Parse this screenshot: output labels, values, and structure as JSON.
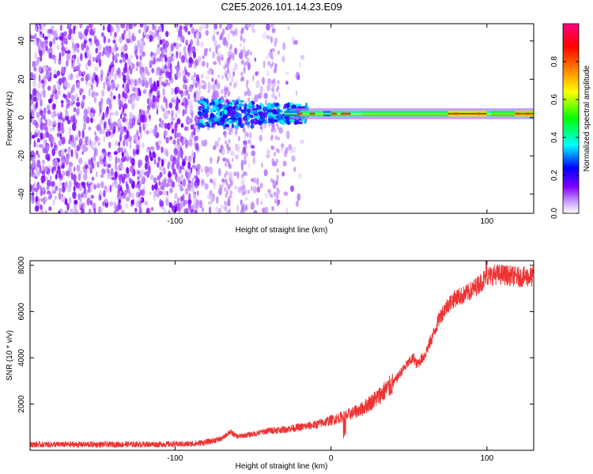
{
  "figure": {
    "title": "C2E5.2026.101.14.23.E09"
  },
  "chart_data": [
    {
      "type": "heatmap",
      "xlabel": "Height of straight line (km)",
      "ylabel": "Frequency (Hz)",
      "xlim": [
        -193,
        130
      ],
      "ylim": [
        -50,
        49
      ],
      "xticks": [
        -100,
        0,
        100
      ],
      "xtick_labels": [
        "-100",
        "0",
        "100"
      ],
      "yticks": [
        -40,
        -20,
        0,
        20,
        40
      ],
      "ytick_labels": [
        "-40",
        "-20",
        "0",
        "20",
        "40"
      ],
      "colorbar": {
        "label": "Normalized spectral amplitude",
        "range": [
          0,
          1
        ],
        "ticks": [
          0.0,
          0.2,
          0.4,
          0.6,
          0.8
        ],
        "tick_labels": [
          "0.0",
          "0.2",
          "0.4",
          "0.6",
          "0.8"
        ],
        "colormap": [
          "#ffffff",
          "#8000ff",
          "#0000ff",
          "#00ffff",
          "#00ff00",
          "#ffff00",
          "#ff8000",
          "#ff0000",
          "#ff0080"
        ]
      },
      "band_frequency_hz": 2,
      "noise_region_end_km": -25,
      "grid": false
    },
    {
      "type": "line",
      "xlabel": "Height of straight line (km)",
      "ylabel": "SNR (10 * v/v)",
      "xlim": [
        -193,
        130
      ],
      "ylim": [
        0,
        8200
      ],
      "xticks": [
        -100,
        0,
        100
      ],
      "xtick_labels": [
        "-100",
        "0",
        "100"
      ],
      "yticks": [
        2000,
        4000,
        6000,
        8000
      ],
      "ytick_labels": [
        "2000",
        "4000",
        "6000",
        "8000"
      ],
      "line_color": "#ee3333",
      "grid": false,
      "series": [
        {
          "x": [
            -193,
            -150,
            -110,
            -90,
            -80,
            -70,
            -65,
            -60,
            -50,
            -40,
            -30,
            -20,
            -10,
            0,
            10,
            20,
            30,
            40,
            45,
            50,
            53,
            55,
            60,
            65,
            70,
            75,
            80,
            85,
            90,
            95,
            100,
            105,
            110,
            120,
            130
          ],
          "values": [
            250,
            250,
            260,
            270,
            350,
            500,
            800,
            600,
            700,
            850,
            900,
            1000,
            1100,
            1300,
            1500,
            1800,
            2300,
            2900,
            3400,
            3800,
            4000,
            3700,
            4100,
            4900,
            5800,
            6300,
            6600,
            6700,
            6900,
            7200,
            7500,
            7600,
            7600,
            7500,
            7500
          ]
        }
      ]
    }
  ]
}
